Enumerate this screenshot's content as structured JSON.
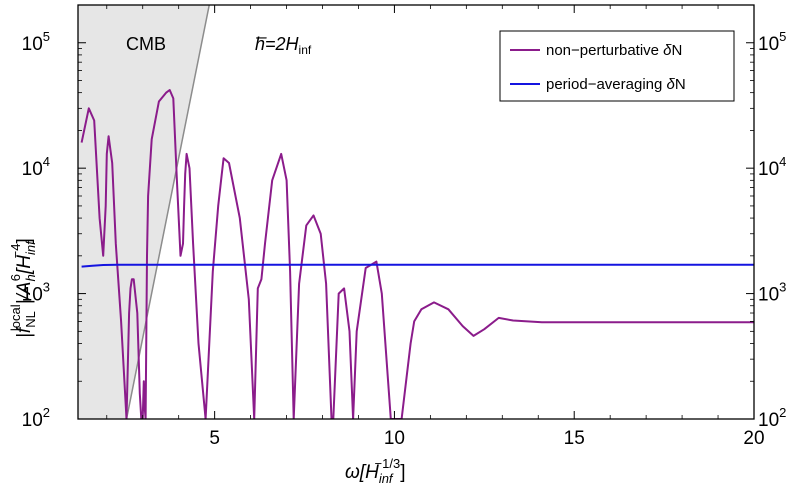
{
  "chart_data": {
    "type": "line",
    "y_scale": "log",
    "xlim": [
      1.2,
      20
    ],
    "ylim": [
      100,
      200000
    ],
    "x_ticks": [
      5,
      10,
      15,
      20
    ],
    "x_tick_labels": [
      "5",
      "10",
      "15",
      "20"
    ],
    "y_tick_mantissa": "10",
    "y_ticks": [
      {
        "value": 100,
        "exponent": "2"
      },
      {
        "value": 1000,
        "exponent": "3"
      },
      {
        "value": 10000,
        "exponent": "4"
      },
      {
        "value": 100000,
        "exponent": "5"
      }
    ],
    "xlabel": {
      "main": "ω[H",
      "sub": "inf",
      "sup": "−1/3",
      "close": "]"
    },
    "ylabel": {
      "p1": "|f",
      "p1_sub": "NL",
      "p1_sup": "local",
      "p2": "|/A",
      "p2_sub": "h",
      "p2_sup": "6",
      "p3": "[H",
      "p3_sub": "inf",
      "p3_sup": "−4",
      "p4": "]"
    },
    "annotations": {
      "region_label": "CMB",
      "condition": {
        "pre": "h̅=2H",
        "sub": "inf"
      }
    },
    "legend": {
      "position": "top-right",
      "entries": [
        {
          "pre": "non−perturbative ",
          "italic": "δ",
          "post": "N",
          "color": "#8B1C8B"
        },
        {
          "pre": "period−averaging ",
          "italic": "δ",
          "post": "N",
          "color": "#1414E0"
        }
      ]
    },
    "region": {
      "name": "CMB",
      "fill": "#E6E6E6",
      "boundary_color": "#8C8C8C",
      "boundary": {
        "x": [
          2.55,
          4.85
        ],
        "y": [
          100,
          200000
        ]
      }
    },
    "series": [
      {
        "name": "non-perturbative δN",
        "color": "#8B1C8B",
        "x": [
          1.3,
          1.5,
          1.65,
          1.8,
          1.9,
          1.97,
          2.0,
          2.05,
          2.15,
          2.25,
          2.4,
          2.55,
          2.62,
          2.66,
          2.7,
          2.75,
          2.85,
          2.92,
          2.96,
          3.0,
          3.03,
          3.05,
          3.08,
          3.12,
          3.15,
          3.25,
          3.45,
          3.65,
          3.75,
          3.85,
          3.95,
          4.05,
          4.12,
          4.15,
          4.18,
          4.22,
          4.3,
          4.4,
          4.55,
          4.75,
          4.95,
          5.1,
          5.2,
          5.25,
          5.4,
          5.7,
          5.95,
          6.1,
          6.2,
          6.3,
          6.4,
          6.6,
          6.85,
          7.0,
          7.1,
          7.2,
          7.35,
          7.55,
          7.75,
          7.95,
          8.1,
          8.25,
          8.3,
          8.45,
          8.6,
          8.75,
          8.85,
          8.95,
          9.2,
          9.5,
          9.65,
          9.9,
          10.2,
          10.45,
          10.55,
          10.75,
          11.1,
          11.5,
          11.9,
          12.2,
          12.5,
          12.9,
          13.3,
          13.7,
          14.1,
          14.6,
          15.2,
          16,
          17,
          18,
          19,
          20
        ],
        "y": [
          16000,
          30000,
          24000,
          4000,
          2000,
          5000,
          13000,
          18000,
          11000,
          2500,
          600,
          100,
          700,
          1100,
          1300,
          1300,
          700,
          160,
          100,
          100,
          200,
          130,
          100,
          2000,
          6000,
          17000,
          34000,
          40000,
          42000,
          36000,
          8000,
          2000,
          2500,
          5000,
          9000,
          13000,
          10000,
          2500,
          400,
          100,
          1500,
          5000,
          9000,
          12000,
          11000,
          4000,
          900,
          100,
          1100,
          1300,
          2500,
          8000,
          13000,
          8000,
          1500,
          100,
          1200,
          3500,
          4200,
          3000,
          1200,
          100,
          100,
          1000,
          1100,
          500,
          100,
          500,
          1600,
          1800,
          1000,
          100,
          100,
          400,
          600,
          750,
          850,
          750,
          550,
          460,
          520,
          640,
          610,
          600,
          590,
          590,
          590,
          590,
          590,
          590,
          590,
          590
        ]
      },
      {
        "name": "period-averaging δN",
        "color": "#1414E0",
        "x": [
          1.3,
          1.6,
          1.9,
          2.3,
          3,
          4,
          6,
          8,
          10,
          12,
          14,
          16,
          18,
          20
        ],
        "y": [
          1640,
          1670,
          1690,
          1700,
          1700,
          1700,
          1700,
          1700,
          1700,
          1700,
          1700,
          1700,
          1700,
          1700
        ]
      }
    ]
  }
}
